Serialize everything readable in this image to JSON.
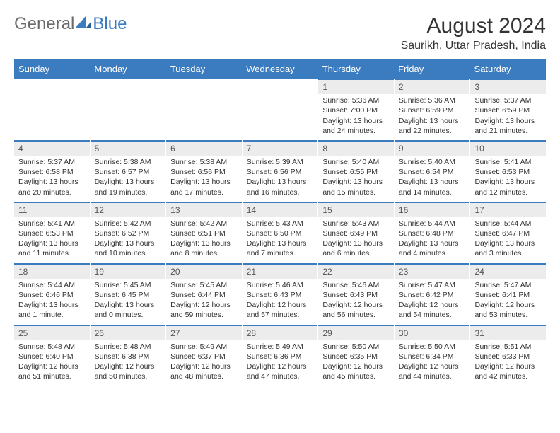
{
  "brand": {
    "part1": "General",
    "part2": "Blue"
  },
  "title": "August 2024",
  "location": "Saurikh, Uttar Pradesh, India",
  "colors": {
    "header_bg": "#3b7bbf",
    "header_text": "#ffffff",
    "daynum_bg": "#ececec",
    "daynum_border": "#3b7bbf",
    "body_text": "#333333",
    "logo_gray": "#6b6b6b",
    "logo_blue": "#3b7bbf",
    "page_bg": "#ffffff"
  },
  "typography": {
    "title_fontsize": 30,
    "location_fontsize": 16,
    "header_fontsize": 13,
    "daynum_fontsize": 12,
    "cell_fontsize": 10.5
  },
  "day_names": [
    "Sunday",
    "Monday",
    "Tuesday",
    "Wednesday",
    "Thursday",
    "Friday",
    "Saturday"
  ],
  "weeks": [
    [
      {
        "day": "",
        "sunrise": "",
        "sunset": "",
        "daylight": ""
      },
      {
        "day": "",
        "sunrise": "",
        "sunset": "",
        "daylight": ""
      },
      {
        "day": "",
        "sunrise": "",
        "sunset": "",
        "daylight": ""
      },
      {
        "day": "",
        "sunrise": "",
        "sunset": "",
        "daylight": ""
      },
      {
        "day": "1",
        "sunrise": "Sunrise: 5:36 AM",
        "sunset": "Sunset: 7:00 PM",
        "daylight": "Daylight: 13 hours and 24 minutes."
      },
      {
        "day": "2",
        "sunrise": "Sunrise: 5:36 AM",
        "sunset": "Sunset: 6:59 PM",
        "daylight": "Daylight: 13 hours and 22 minutes."
      },
      {
        "day": "3",
        "sunrise": "Sunrise: 5:37 AM",
        "sunset": "Sunset: 6:59 PM",
        "daylight": "Daylight: 13 hours and 21 minutes."
      }
    ],
    [
      {
        "day": "4",
        "sunrise": "Sunrise: 5:37 AM",
        "sunset": "Sunset: 6:58 PM",
        "daylight": "Daylight: 13 hours and 20 minutes."
      },
      {
        "day": "5",
        "sunrise": "Sunrise: 5:38 AM",
        "sunset": "Sunset: 6:57 PM",
        "daylight": "Daylight: 13 hours and 19 minutes."
      },
      {
        "day": "6",
        "sunrise": "Sunrise: 5:38 AM",
        "sunset": "Sunset: 6:56 PM",
        "daylight": "Daylight: 13 hours and 17 minutes."
      },
      {
        "day": "7",
        "sunrise": "Sunrise: 5:39 AM",
        "sunset": "Sunset: 6:56 PM",
        "daylight": "Daylight: 13 hours and 16 minutes."
      },
      {
        "day": "8",
        "sunrise": "Sunrise: 5:40 AM",
        "sunset": "Sunset: 6:55 PM",
        "daylight": "Daylight: 13 hours and 15 minutes."
      },
      {
        "day": "9",
        "sunrise": "Sunrise: 5:40 AM",
        "sunset": "Sunset: 6:54 PM",
        "daylight": "Daylight: 13 hours and 14 minutes."
      },
      {
        "day": "10",
        "sunrise": "Sunrise: 5:41 AM",
        "sunset": "Sunset: 6:53 PM",
        "daylight": "Daylight: 13 hours and 12 minutes."
      }
    ],
    [
      {
        "day": "11",
        "sunrise": "Sunrise: 5:41 AM",
        "sunset": "Sunset: 6:53 PM",
        "daylight": "Daylight: 13 hours and 11 minutes."
      },
      {
        "day": "12",
        "sunrise": "Sunrise: 5:42 AM",
        "sunset": "Sunset: 6:52 PM",
        "daylight": "Daylight: 13 hours and 10 minutes."
      },
      {
        "day": "13",
        "sunrise": "Sunrise: 5:42 AM",
        "sunset": "Sunset: 6:51 PM",
        "daylight": "Daylight: 13 hours and 8 minutes."
      },
      {
        "day": "14",
        "sunrise": "Sunrise: 5:43 AM",
        "sunset": "Sunset: 6:50 PM",
        "daylight": "Daylight: 13 hours and 7 minutes."
      },
      {
        "day": "15",
        "sunrise": "Sunrise: 5:43 AM",
        "sunset": "Sunset: 6:49 PM",
        "daylight": "Daylight: 13 hours and 6 minutes."
      },
      {
        "day": "16",
        "sunrise": "Sunrise: 5:44 AM",
        "sunset": "Sunset: 6:48 PM",
        "daylight": "Daylight: 13 hours and 4 minutes."
      },
      {
        "day": "17",
        "sunrise": "Sunrise: 5:44 AM",
        "sunset": "Sunset: 6:47 PM",
        "daylight": "Daylight: 13 hours and 3 minutes."
      }
    ],
    [
      {
        "day": "18",
        "sunrise": "Sunrise: 5:44 AM",
        "sunset": "Sunset: 6:46 PM",
        "daylight": "Daylight: 13 hours and 1 minute."
      },
      {
        "day": "19",
        "sunrise": "Sunrise: 5:45 AM",
        "sunset": "Sunset: 6:45 PM",
        "daylight": "Daylight: 13 hours and 0 minutes."
      },
      {
        "day": "20",
        "sunrise": "Sunrise: 5:45 AM",
        "sunset": "Sunset: 6:44 PM",
        "daylight": "Daylight: 12 hours and 59 minutes."
      },
      {
        "day": "21",
        "sunrise": "Sunrise: 5:46 AM",
        "sunset": "Sunset: 6:43 PM",
        "daylight": "Daylight: 12 hours and 57 minutes."
      },
      {
        "day": "22",
        "sunrise": "Sunrise: 5:46 AM",
        "sunset": "Sunset: 6:43 PM",
        "daylight": "Daylight: 12 hours and 56 minutes."
      },
      {
        "day": "23",
        "sunrise": "Sunrise: 5:47 AM",
        "sunset": "Sunset: 6:42 PM",
        "daylight": "Daylight: 12 hours and 54 minutes."
      },
      {
        "day": "24",
        "sunrise": "Sunrise: 5:47 AM",
        "sunset": "Sunset: 6:41 PM",
        "daylight": "Daylight: 12 hours and 53 minutes."
      }
    ],
    [
      {
        "day": "25",
        "sunrise": "Sunrise: 5:48 AM",
        "sunset": "Sunset: 6:40 PM",
        "daylight": "Daylight: 12 hours and 51 minutes."
      },
      {
        "day": "26",
        "sunrise": "Sunrise: 5:48 AM",
        "sunset": "Sunset: 6:38 PM",
        "daylight": "Daylight: 12 hours and 50 minutes."
      },
      {
        "day": "27",
        "sunrise": "Sunrise: 5:49 AM",
        "sunset": "Sunset: 6:37 PM",
        "daylight": "Daylight: 12 hours and 48 minutes."
      },
      {
        "day": "28",
        "sunrise": "Sunrise: 5:49 AM",
        "sunset": "Sunset: 6:36 PM",
        "daylight": "Daylight: 12 hours and 47 minutes."
      },
      {
        "day": "29",
        "sunrise": "Sunrise: 5:50 AM",
        "sunset": "Sunset: 6:35 PM",
        "daylight": "Daylight: 12 hours and 45 minutes."
      },
      {
        "day": "30",
        "sunrise": "Sunrise: 5:50 AM",
        "sunset": "Sunset: 6:34 PM",
        "daylight": "Daylight: 12 hours and 44 minutes."
      },
      {
        "day": "31",
        "sunrise": "Sunrise: 5:51 AM",
        "sunset": "Sunset: 6:33 PM",
        "daylight": "Daylight: 12 hours and 42 minutes."
      }
    ]
  ]
}
